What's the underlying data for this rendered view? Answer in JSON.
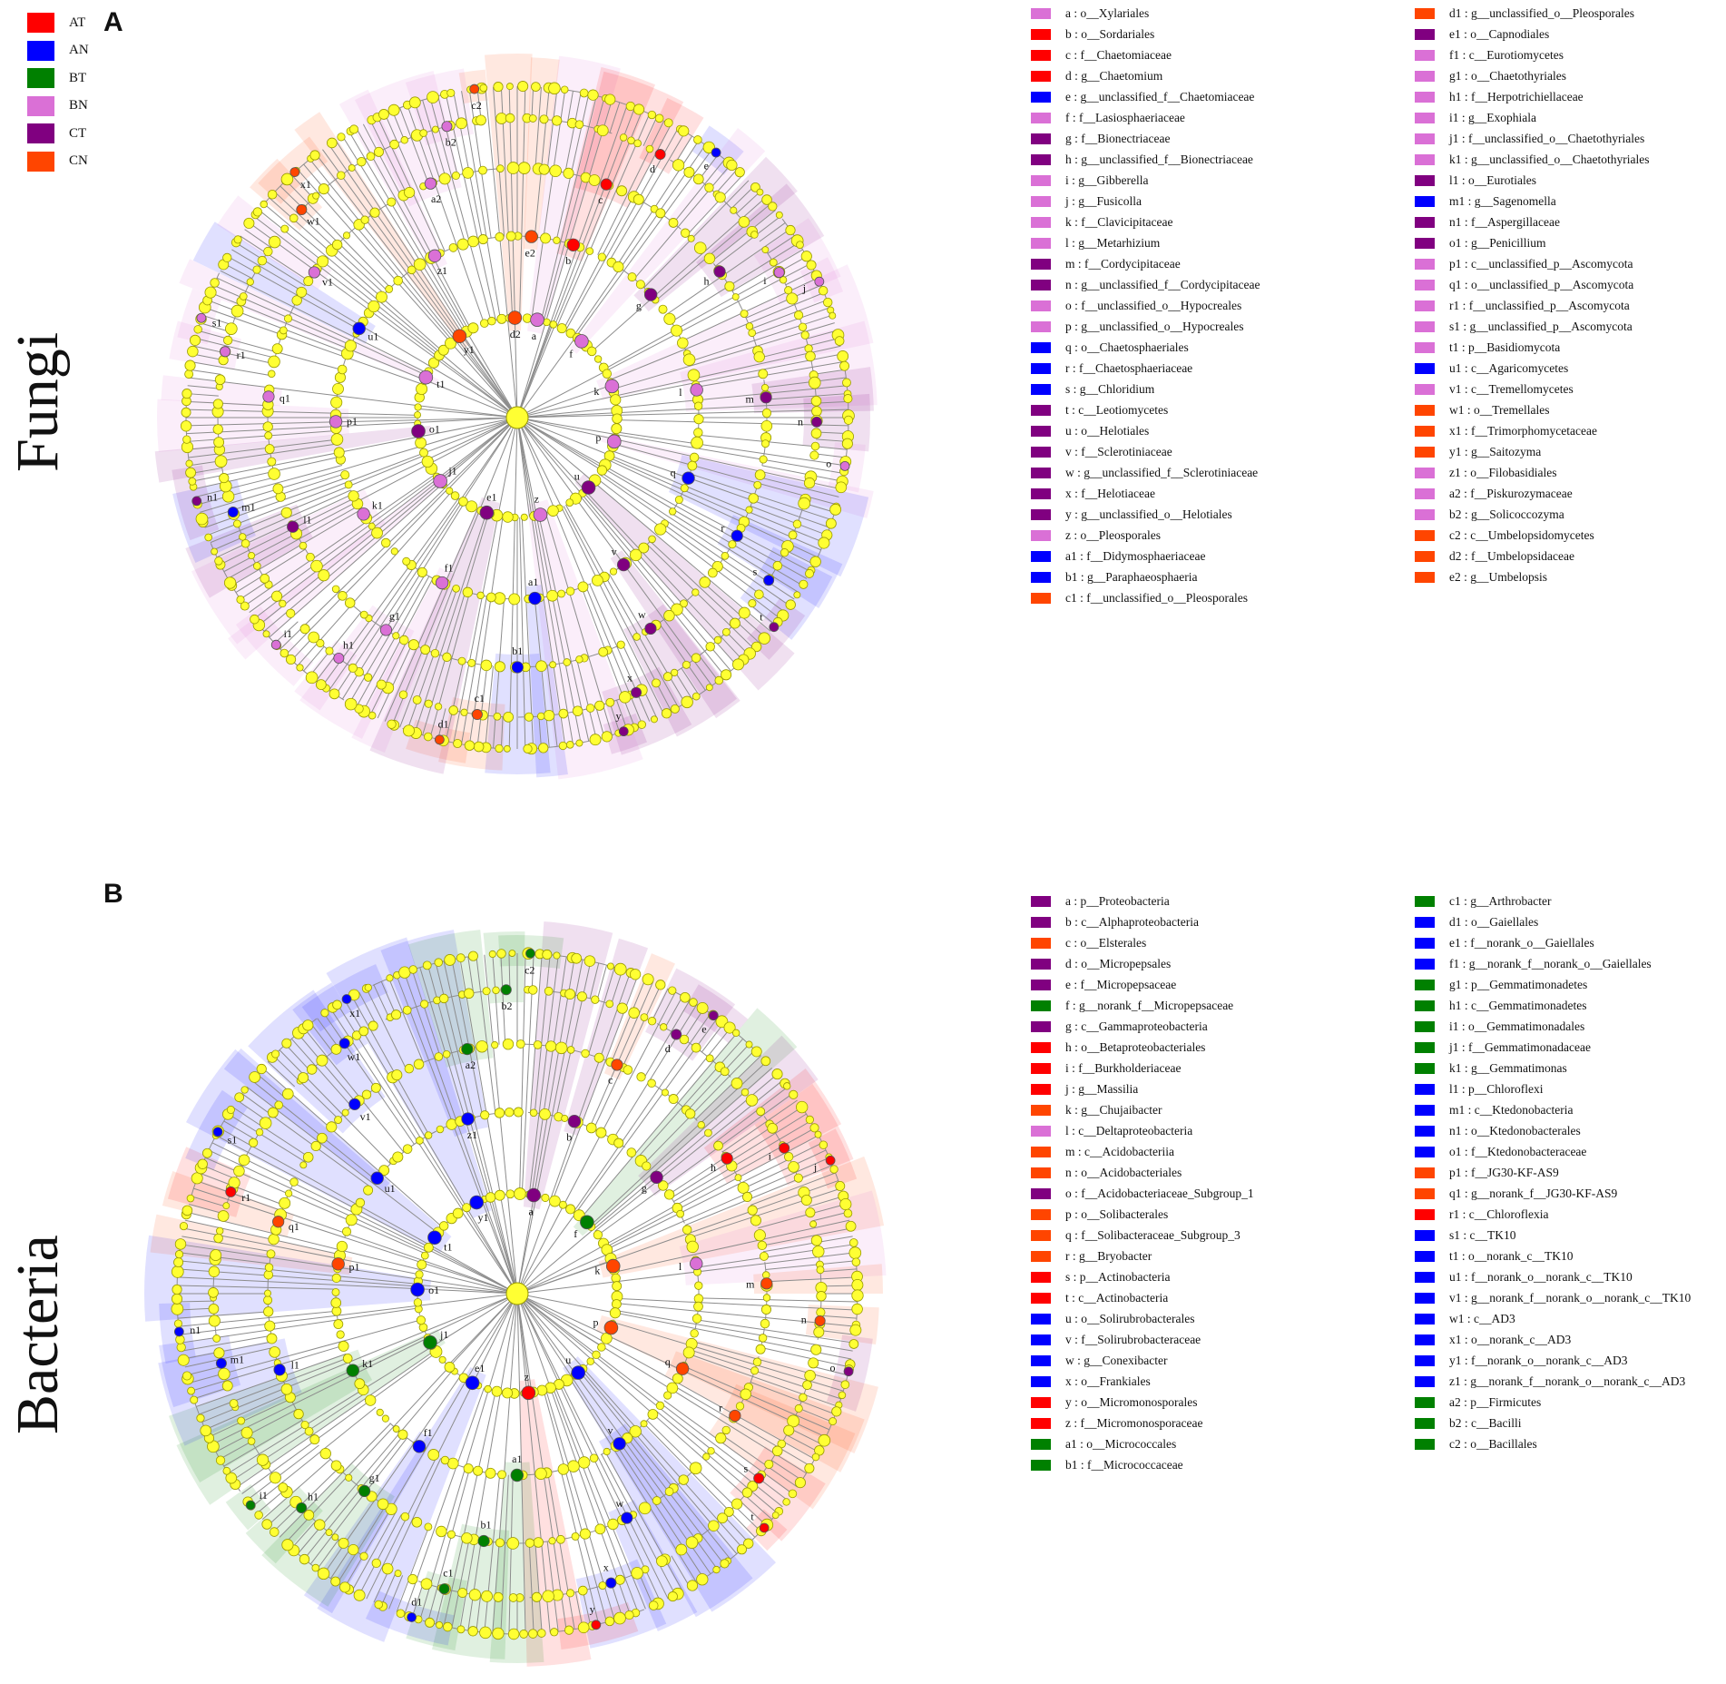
{
  "panels": {
    "a": {
      "letter": "A",
      "title": "Fungi"
    },
    "b": {
      "letter": "B",
      "title": "Bacteria"
    }
  },
  "groups": [
    {
      "label": "AT",
      "color": "#ff0000"
    },
    {
      "label": "AN",
      "color": "#0000ff"
    },
    {
      "label": "BT",
      "color": "#008000"
    },
    {
      "label": "BN",
      "color": "#da70d6"
    },
    {
      "label": "CT",
      "color": "#800080"
    },
    {
      "label": "CN",
      "color": "#ff4500"
    }
  ],
  "fungi_legend": [
    {
      "text": "a : o__Xylariales",
      "g": "BN"
    },
    {
      "text": "b : o__Sordariales",
      "g": "AT"
    },
    {
      "text": "c : f__Chaetomiaceae",
      "g": "AT"
    },
    {
      "text": "d : g__Chaetomium",
      "g": "AT"
    },
    {
      "text": "e : g__unclassified_f__Chaetomiaceae",
      "g": "AN"
    },
    {
      "text": "f : f__Lasiosphaeriaceae",
      "g": "BN"
    },
    {
      "text": "g : f__Bionectriaceae",
      "g": "CT"
    },
    {
      "text": "h : g__unclassified_f__Bionectriaceae",
      "g": "CT"
    },
    {
      "text": "i : g__Gibberella",
      "g": "BN"
    },
    {
      "text": "j : g__Fusicolla",
      "g": "BN"
    },
    {
      "text": "k : f__Clavicipitaceae",
      "g": "BN"
    },
    {
      "text": "l : g__Metarhizium",
      "g": "BN"
    },
    {
      "text": "m : f__Cordycipitaceae",
      "g": "CT"
    },
    {
      "text": "n : g__unclassified_f__Cordycipitaceae",
      "g": "CT"
    },
    {
      "text": "o : f__unclassified_o__Hypocreales",
      "g": "BN"
    },
    {
      "text": "p : g__unclassified_o__Hypocreales",
      "g": "BN"
    },
    {
      "text": "q : o__Chaetosphaeriales",
      "g": "AN"
    },
    {
      "text": "r : f__Chaetosphaeriaceae",
      "g": "AN"
    },
    {
      "text": "s : g__Chloridium",
      "g": "AN"
    },
    {
      "text": "t : c__Leotiomycetes",
      "g": "CT"
    },
    {
      "text": "u : o__Helotiales",
      "g": "CT"
    },
    {
      "text": "v : f__Sclerotiniaceae",
      "g": "CT"
    },
    {
      "text": "w : g__unclassified_f__Sclerotiniaceae",
      "g": "CT"
    },
    {
      "text": "x : f__Helotiaceae",
      "g": "CT"
    },
    {
      "text": "y : g__unclassified_o__Helotiales",
      "g": "CT"
    },
    {
      "text": "z : o__Pleosporales",
      "g": "BN"
    },
    {
      "text": "a1 : f__Didymosphaeriaceae",
      "g": "AN"
    },
    {
      "text": "b1 : g__Paraphaeosphaeria",
      "g": "AN"
    },
    {
      "text": "c1 : f__unclassified_o__Pleosporales",
      "g": "CN"
    },
    {
      "text": "d1 : g__unclassified_o__Pleosporales",
      "g": "CN"
    },
    {
      "text": "e1 : o__Capnodiales",
      "g": "CT"
    },
    {
      "text": "f1 : c__Eurotiomycetes",
      "g": "BN"
    },
    {
      "text": "g1 : o__Chaetothyriales",
      "g": "BN"
    },
    {
      "text": "h1 : f__Herpotrichiellaceae",
      "g": "BN"
    },
    {
      "text": "i1 : g__Exophiala",
      "g": "BN"
    },
    {
      "text": "j1 : f__unclassified_o__Chaetothyriales",
      "g": "BN"
    },
    {
      "text": "k1 : g__unclassified_o__Chaetothyriales",
      "g": "BN"
    },
    {
      "text": "l1 : o__Eurotiales",
      "g": "CT"
    },
    {
      "text": "m1 : g__Sagenomella",
      "g": "AN"
    },
    {
      "text": "n1 : f__Aspergillaceae",
      "g": "CT"
    },
    {
      "text": "o1 : g__Penicillium",
      "g": "CT"
    },
    {
      "text": "p1 : c__unclassified_p__Ascomycota",
      "g": "BN"
    },
    {
      "text": "q1 : o__unclassified_p__Ascomycota",
      "g": "BN"
    },
    {
      "text": "r1 : f__unclassified_p__Ascomycota",
      "g": "BN"
    },
    {
      "text": "s1 : g__unclassified_p__Ascomycota",
      "g": "BN"
    },
    {
      "text": "t1 : p__Basidiomycota",
      "g": "BN"
    },
    {
      "text": "u1 : c__Agaricomycetes",
      "g": "AN"
    },
    {
      "text": "v1 : c__Tremellomycetes",
      "g": "BN"
    },
    {
      "text": "w1 : o__Tremellales",
      "g": "CN"
    },
    {
      "text": "x1 : f__Trimorphomycetaceae",
      "g": "CN"
    },
    {
      "text": "y1 : g__Saitozyma",
      "g": "CN"
    },
    {
      "text": "z1 : o__Filobasidiales",
      "g": "BN"
    },
    {
      "text": "a2 : f__Piskurozymaceae",
      "g": "BN"
    },
    {
      "text": "b2 : g__Solicoccozyma",
      "g": "BN"
    },
    {
      "text": "c2 : c__Umbelopsidomycetes",
      "g": "CN"
    },
    {
      "text": "d2 : f__Umbelopsidaceae",
      "g": "CN"
    },
    {
      "text": "e2 : g__Umbelopsis",
      "g": "CN"
    }
  ],
  "bacteria_legend": [
    {
      "text": "a : p__Proteobacteria",
      "g": "CT"
    },
    {
      "text": "b : c__Alphaproteobacteria",
      "g": "CT"
    },
    {
      "text": "c : o__Elsterales",
      "g": "CN"
    },
    {
      "text": "d : o__Micropepsales",
      "g": "CT"
    },
    {
      "text": "e : f__Micropepsaceae",
      "g": "CT"
    },
    {
      "text": "f : g__norank_f__Micropepsaceae",
      "g": "BT"
    },
    {
      "text": "g : c__Gammaproteobacteria",
      "g": "CT"
    },
    {
      "text": "h : o__Betaproteobacteriales",
      "g": "AT"
    },
    {
      "text": "i : f__Burkholderiaceae",
      "g": "AT"
    },
    {
      "text": "j : g__Massilia",
      "g": "AT"
    },
    {
      "text": "k : g__Chujaibacter",
      "g": "CN"
    },
    {
      "text": "l : c__Deltaproteobacteria",
      "g": "BN"
    },
    {
      "text": "m : c__Acidobacteriia",
      "g": "CN"
    },
    {
      "text": "n : o__Acidobacteriales",
      "g": "CN"
    },
    {
      "text": "o : f__Acidobacteriaceae_Subgroup_1",
      "g": "CT"
    },
    {
      "text": "p : o__Solibacterales",
      "g": "CN"
    },
    {
      "text": "q : f__Solibacteraceae_Subgroup_3",
      "g": "CN"
    },
    {
      "text": "r : g__Bryobacter",
      "g": "CN"
    },
    {
      "text": "s : p__Actinobacteria",
      "g": "AT"
    },
    {
      "text": "t : c__Actinobacteria",
      "g": "AT"
    },
    {
      "text": "u : o__Solirubrobacterales",
      "g": "AN"
    },
    {
      "text": "v : f__Solirubrobacteraceae",
      "g": "AN"
    },
    {
      "text": "w : g__Conexibacter",
      "g": "AN"
    },
    {
      "text": "x : o__Frankiales",
      "g": "AN"
    },
    {
      "text": "y : o__Micromonosporales",
      "g": "AT"
    },
    {
      "text": "z : f__Micromonosporaceae",
      "g": "AT"
    },
    {
      "text": "a1 : o__Micrococcales",
      "g": "BT"
    },
    {
      "text": "b1 : f__Micrococcaceae",
      "g": "BT"
    },
    {
      "text": "c1 : g__Arthrobacter",
      "g": "BT"
    },
    {
      "text": "d1 : o__Gaiellales",
      "g": "AN"
    },
    {
      "text": "e1 : f__norank_o__Gaiellales",
      "g": "AN"
    },
    {
      "text": "f1 : g__norank_f__norank_o__Gaiellales",
      "g": "AN"
    },
    {
      "text": "g1 : p__Gemmatimonadetes",
      "g": "BT"
    },
    {
      "text": "h1 : c__Gemmatimonadetes",
      "g": "BT"
    },
    {
      "text": "i1 : o__Gemmatimonadales",
      "g": "BT"
    },
    {
      "text": "j1 : f__Gemmatimonadaceae",
      "g": "BT"
    },
    {
      "text": "k1 : g__Gemmatimonas",
      "g": "BT"
    },
    {
      "text": "l1 : p__Chloroflexi",
      "g": "AN"
    },
    {
      "text": "m1 : c__Ktedonobacteria",
      "g": "AN"
    },
    {
      "text": "n1 : o__Ktedonobacterales",
      "g": "AN"
    },
    {
      "text": "o1 : f__Ktedonobacteraceae",
      "g": "AN"
    },
    {
      "text": "p1 : f__JG30-KF-AS9",
      "g": "CN"
    },
    {
      "text": "q1 : g__norank_f__JG30-KF-AS9",
      "g": "CN"
    },
    {
      "text": "r1 : c__Chloroflexia",
      "g": "AT"
    },
    {
      "text": "s1 : c__TK10",
      "g": "AN"
    },
    {
      "text": "t1 : o__norank_c__TK10",
      "g": "AN"
    },
    {
      "text": "u1 : f__norank_o__norank_c__TK10",
      "g": "AN"
    },
    {
      "text": "v1 : g__norank_f__norank_o__norank_c__TK10",
      "g": "AN"
    },
    {
      "text": "w1 : c__AD3",
      "g": "AN"
    },
    {
      "text": "x1 : o__norank_c__AD3",
      "g": "AN"
    },
    {
      "text": "y1 : f__norank_o__norank_c__AD3",
      "g": "AN"
    },
    {
      "text": "z1 : g__norank_f__norank_o__norank_c__AD3",
      "g": "AN"
    },
    {
      "text": "a2 : p__Firmicutes",
      "g": "BT"
    },
    {
      "text": "b2 : c__Bacilli",
      "g": "BT"
    },
    {
      "text": "c2 : o__Bacillales",
      "g": "BT"
    }
  ],
  "fungi_nodes": [
    {
      "l": "a",
      "g": "BN"
    },
    {
      "l": "b",
      "g": "AT"
    },
    {
      "l": "c",
      "g": "AT"
    },
    {
      "l": "d",
      "g": "AT"
    },
    {
      "l": "e",
      "g": "AN"
    },
    {
      "l": "f",
      "g": "BN"
    },
    {
      "l": "g",
      "g": "CT"
    },
    {
      "l": "h",
      "g": "CT"
    },
    {
      "l": "i",
      "g": "BN"
    },
    {
      "l": "j",
      "g": "BN"
    },
    {
      "l": "k",
      "g": "BN"
    },
    {
      "l": "l",
      "g": "BN"
    },
    {
      "l": "m",
      "g": "CT"
    },
    {
      "l": "n",
      "g": "CT"
    },
    {
      "l": "o",
      "g": "BN"
    },
    {
      "l": "p",
      "g": "BN"
    },
    {
      "l": "q",
      "g": "AN"
    },
    {
      "l": "r",
      "g": "AN"
    },
    {
      "l": "s",
      "g": "AN"
    },
    {
      "l": "t",
      "g": "CT"
    },
    {
      "l": "u",
      "g": "CT"
    },
    {
      "l": "v",
      "g": "CT"
    },
    {
      "l": "w",
      "g": "CT"
    },
    {
      "l": "x",
      "g": "CT"
    },
    {
      "l": "y",
      "g": "CT"
    },
    {
      "l": "z",
      "g": "BN"
    },
    {
      "l": "a1",
      "g": "AN"
    },
    {
      "l": "b1",
      "g": "AN"
    },
    {
      "l": "c1",
      "g": "CN"
    },
    {
      "l": "d1",
      "g": "CN"
    },
    {
      "l": "e1",
      "g": "CT"
    },
    {
      "l": "f1",
      "g": "BN"
    },
    {
      "l": "g1",
      "g": "BN"
    },
    {
      "l": "h1",
      "g": "BN"
    },
    {
      "l": "i1",
      "g": "BN"
    },
    {
      "l": "j1",
      "g": "BN"
    },
    {
      "l": "k1",
      "g": "BN"
    },
    {
      "l": "l1",
      "g": "CT"
    },
    {
      "l": "m1",
      "g": "AN"
    },
    {
      "l": "n1",
      "g": "CT"
    },
    {
      "l": "o1",
      "g": "CT"
    },
    {
      "l": "p1",
      "g": "BN"
    },
    {
      "l": "q1",
      "g": "BN"
    },
    {
      "l": "r1",
      "g": "BN"
    },
    {
      "l": "s1",
      "g": "BN"
    },
    {
      "l": "t1",
      "g": "BN"
    },
    {
      "l": "u1",
      "g": "AN"
    },
    {
      "l": "v1",
      "g": "BN"
    },
    {
      "l": "w1",
      "g": "CN"
    },
    {
      "l": "x1",
      "g": "CN"
    },
    {
      "l": "y1",
      "g": "CN"
    },
    {
      "l": "z1",
      "g": "BN"
    },
    {
      "l": "a2",
      "g": "BN"
    },
    {
      "l": "b2",
      "g": "BN"
    },
    {
      "l": "c2",
      "g": "CN"
    },
    {
      "l": "d2",
      "g": "CN"
    },
    {
      "l": "e2",
      "g": "CN"
    }
  ],
  "bacteria_nodes": [
    {
      "l": "a",
      "g": "CT"
    },
    {
      "l": "b",
      "g": "CT"
    },
    {
      "l": "c",
      "g": "CN"
    },
    {
      "l": "d",
      "g": "CT"
    },
    {
      "l": "e",
      "g": "CT"
    },
    {
      "l": "f",
      "g": "BT"
    },
    {
      "l": "g",
      "g": "CT"
    },
    {
      "l": "h",
      "g": "AT"
    },
    {
      "l": "i",
      "g": "AT"
    },
    {
      "l": "j",
      "g": "AT"
    },
    {
      "l": "k",
      "g": "CN"
    },
    {
      "l": "l",
      "g": "BN"
    },
    {
      "l": "m",
      "g": "CN"
    },
    {
      "l": "n",
      "g": "CN"
    },
    {
      "l": "o",
      "g": "CT"
    },
    {
      "l": "p",
      "g": "CN"
    },
    {
      "l": "q",
      "g": "CN"
    },
    {
      "l": "r",
      "g": "CN"
    },
    {
      "l": "s",
      "g": "AT"
    },
    {
      "l": "t",
      "g": "AT"
    },
    {
      "l": "u",
      "g": "AN"
    },
    {
      "l": "v",
      "g": "AN"
    },
    {
      "l": "w",
      "g": "AN"
    },
    {
      "l": "x",
      "g": "AN"
    },
    {
      "l": "y",
      "g": "AT"
    },
    {
      "l": "z",
      "g": "AT"
    },
    {
      "l": "a1",
      "g": "BT"
    },
    {
      "l": "b1",
      "g": "BT"
    },
    {
      "l": "c1",
      "g": "BT"
    },
    {
      "l": "d1",
      "g": "AN"
    },
    {
      "l": "e1",
      "g": "AN"
    },
    {
      "l": "f1",
      "g": "AN"
    },
    {
      "l": "g1",
      "g": "BT"
    },
    {
      "l": "h1",
      "g": "BT"
    },
    {
      "l": "i1",
      "g": "BT"
    },
    {
      "l": "j1",
      "g": "BT"
    },
    {
      "l": "k1",
      "g": "BT"
    },
    {
      "l": "l1",
      "g": "AN"
    },
    {
      "l": "m1",
      "g": "AN"
    },
    {
      "l": "n1",
      "g": "AN"
    },
    {
      "l": "o1",
      "g": "AN"
    },
    {
      "l": "p1",
      "g": "CN"
    },
    {
      "l": "q1",
      "g": "CN"
    },
    {
      "l": "r1",
      "g": "AT"
    },
    {
      "l": "s1",
      "g": "AN"
    },
    {
      "l": "t1",
      "g": "AN"
    },
    {
      "l": "u1",
      "g": "AN"
    },
    {
      "l": "v1",
      "g": "AN"
    },
    {
      "l": "w1",
      "g": "AN"
    },
    {
      "l": "x1",
      "g": "AN"
    },
    {
      "l": "y1",
      "g": "AN"
    },
    {
      "l": "z1",
      "g": "AN"
    },
    {
      "l": "a2",
      "g": "BT"
    },
    {
      "l": "b2",
      "g": "BT"
    },
    {
      "l": "c2",
      "g": "BT"
    }
  ]
}
